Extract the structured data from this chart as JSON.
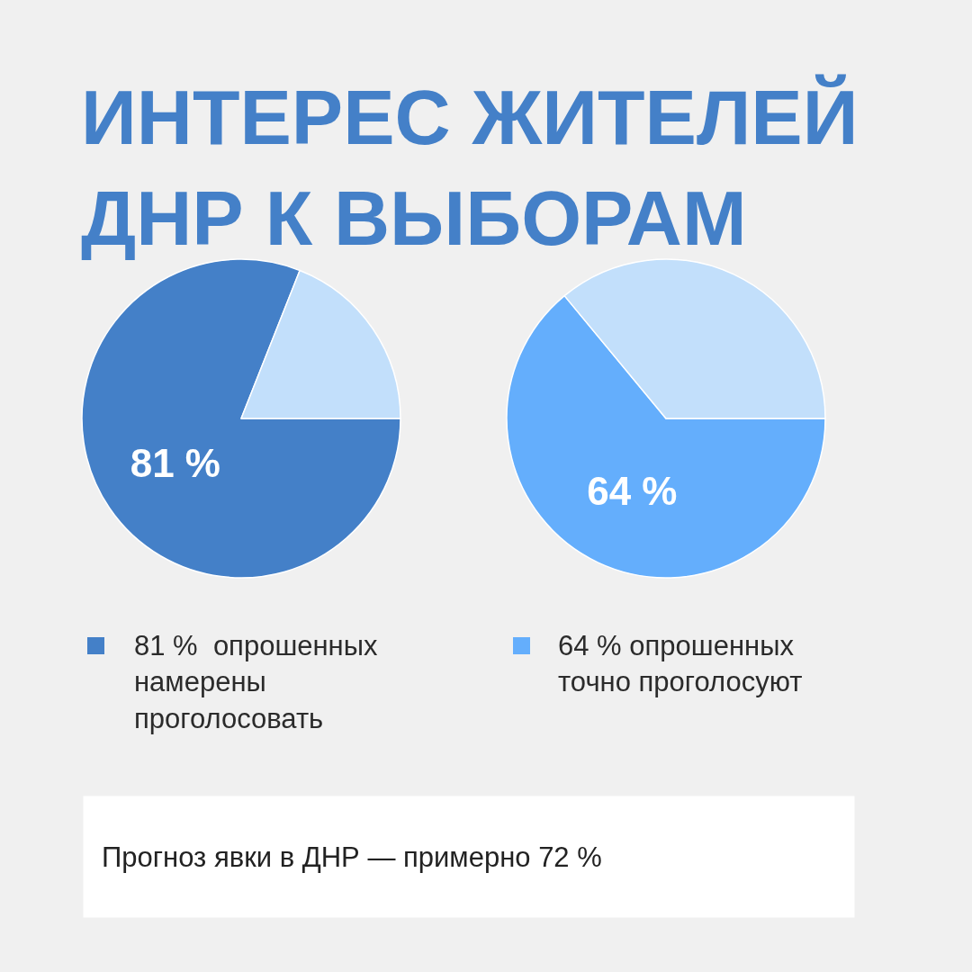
{
  "chart_data": [
    {
      "type": "pie",
      "title": "ИНТЕРЕС ЖИТЕЛЕЙ\nДНР К ВЫБОРАМ",
      "categories": [
        "81 %  опрошенных\nнамерены\nпроголосовать",
        null
      ],
      "values": [
        81,
        19
      ],
      "colors": [
        "#4480c8",
        "#c2dffb"
      ],
      "value_labels": [
        "81 %",
        null
      ],
      "legend": "bottom"
    },
    {
      "type": "pie",
      "categories": [
        "64 % опрошенных\nточно проголосуют",
        null
      ],
      "values": [
        64,
        36
      ],
      "colors": [
        "#64aefc",
        "#c2dffb"
      ],
      "value_labels": [
        "64 %",
        null
      ],
      "legend": "bottom",
      "annotations": [
        "Прогноз явки в ДНР — примерно 72 %"
      ]
    }
  ]
}
